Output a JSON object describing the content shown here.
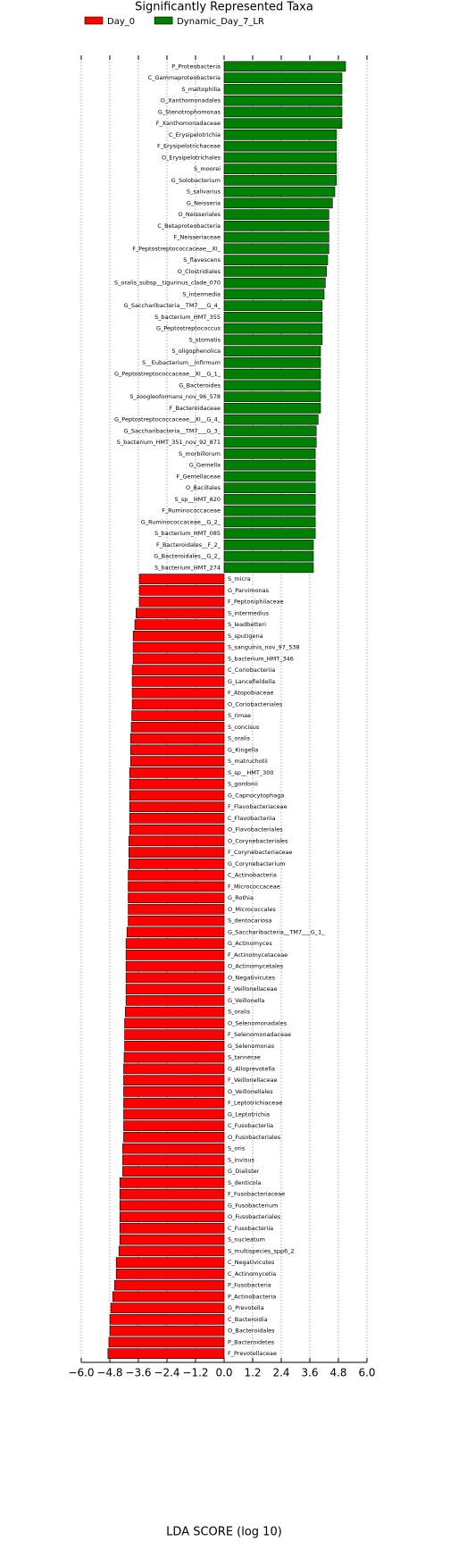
{
  "chart_data": {
    "type": "bar",
    "orientation": "horizontal",
    "title": "Significantly Represented Taxa",
    "xlabel": "LDA SCORE (log 10)",
    "categories": [
      "P_Proteobacteria",
      "C_Gammaproteobacteria",
      "S_maltophilia",
      "O_Xanthomonadales",
      "G_Stenotrophomonas",
      "F_Xanthomonadaceae",
      "C_Erysipelotrichia",
      "F_Erysipelotrichaceae",
      "O_Erysipelotrichales",
      "S_moorei",
      "G_Solobacterium",
      "S_salivarius",
      "G_Neisseria",
      "O_Neisseriales",
      "C_Betaproteobacteria",
      "F_Neisseriaceae",
      "F_Peptostreptococcaceae__XI_",
      "S_flavescens",
      "O_Clostridiales",
      "S_oralis_subsp__tigurinus_clade_070",
      "S_intermedia",
      "G_Saccharibacteria__TM7___G_4_",
      "S_bacterium_HMT_355",
      "G_Peptostreptococcus",
      "S_stomatis",
      "S_oligophenolica",
      "S__Eubacterium__infirmum",
      "G_Peptostreptococcaceae__XI__G_1_",
      "G_Bacteroides",
      "S_zoogleoformans_nov_96_578",
      "F_Bacteroidaceae",
      "G_Peptostreptococcaceae__XI__G_4_",
      "G_Saccharibacteria__TM7___G_3_",
      "S_bacterium_HMT_351_nov_92_871",
      "S_morbillorum",
      "G_Gemella",
      "F_Gemellaceae",
      "O_Bacillales",
      "S_sp__HMT_820",
      "F_Ruminococcaceae",
      "G_Ruminococcaceae__G_2_",
      "S_bacterium_HMT_085",
      "F_Bacteroidales__F_2_",
      "G_Bacteroidales__G_2_",
      "S_bacterium_HMT_274",
      "S_micra",
      "G_Parvimonas",
      "F_Peptoniphilaceae",
      "S_intermedius",
      "S_leadbetteri",
      "S_sputigena",
      "S_sanguinis_nov_97_538",
      "S_bacterium_HMT_346",
      "C_Coriobacteriia",
      "G_Lancefieldella",
      "F_Atopobiaceae",
      "O_Coriobacteriales",
      "S_rimae",
      "S_concisus",
      "S_oralis",
      "G_Kingella",
      "S_matruchotii",
      "S_sp__HMT_300",
      "S_gordonii",
      "G_Capnocytophaga",
      "F_Flavobacteriaceae",
      "C_Flavobacteriia",
      "O_Flavobacteriales",
      "O_Corynebacteriales",
      "F_Corynebacteriaceae",
      "G_Corynebacterium",
      "C_Actinobacteria",
      "F_Micrococcaceae",
      "G_Rothia",
      "O_Micrococcales",
      "S_dentocariosa",
      "G_Saccharibacteria__TM7___G_1_",
      "G_Actinomyces",
      "F_Actinomycetaceae",
      "O_Actinomycetales",
      "O_Negativicutes",
      "F_Veillonellaceae",
      "G_Veillonella",
      "S_oralis",
      "O_Selenomonadales",
      "F_Selenomonadaceae",
      "G_Selenomonas",
      "S_tannerae",
      "G_Alloprevotella",
      "F_Veillonellaceae",
      "O_Veillonellales",
      "F_Leptotrichiaceae",
      "G_Leptotrichia",
      "C_Fusobacteriia",
      "O_Fusobacteriales",
      "S_oris",
      "S_invisus",
      "G_Dialister",
      "S_denticola",
      "F_Fusobacteriaceae",
      "G_Fusobacterium",
      "O_Fusobacteriales",
      "C_Fusobacteriia",
      "S_nucleatum",
      "S_multispecies_spp6_2",
      "C_Negativicutes",
      "C_Actinomycetia",
      "P_Fusobacteria",
      "P_Actinobacteria",
      "G_Prevotella",
      "C_Bacteroidia",
      "O_Bacteroidales",
      "P_Bacteroidetes",
      "F_Prevotellaceae"
    ],
    "series": [
      {
        "name": "Day_0",
        "color": "#ff0000",
        "values": [
          null,
          null,
          null,
          null,
          null,
          null,
          null,
          null,
          null,
          null,
          null,
          null,
          null,
          null,
          null,
          null,
          null,
          null,
          null,
          null,
          null,
          null,
          null,
          null,
          null,
          null,
          null,
          null,
          null,
          null,
          null,
          null,
          null,
          null,
          null,
          null,
          null,
          null,
          null,
          null,
          null,
          null,
          null,
          null,
          null,
          -3.56,
          -3.56,
          -3.56,
          -3.7,
          -3.75,
          -3.82,
          -3.82,
          -3.82,
          -3.86,
          -3.86,
          -3.86,
          -3.86,
          -3.88,
          -3.9,
          -3.93,
          -3.93,
          -3.93,
          -3.97,
          -3.97,
          -3.97,
          -3.97,
          -3.97,
          -3.97,
          -4.0,
          -4.0,
          -4.0,
          -4.03,
          -4.03,
          -4.03,
          -4.03,
          -4.03,
          -4.08,
          -4.12,
          -4.12,
          -4.12,
          -4.12,
          -4.12,
          -4.12,
          -4.15,
          -4.18,
          -4.18,
          -4.18,
          -4.2,
          -4.22,
          -4.22,
          -4.22,
          -4.22,
          -4.22,
          -4.22,
          -4.22,
          -4.26,
          -4.26,
          -4.26,
          -4.38,
          -4.38,
          -4.38,
          -4.38,
          -4.38,
          -4.38,
          -4.42,
          -4.53,
          -4.53,
          -4.6,
          -4.68,
          -4.76,
          -4.8,
          -4.8,
          -4.84,
          -4.88
        ]
      },
      {
        "name": "Dynamic_Day_7_LR",
        "color": "#008000",
        "values": [
          5.1,
          4.95,
          4.95,
          4.95,
          4.95,
          4.95,
          4.72,
          4.72,
          4.72,
          4.72,
          4.72,
          4.65,
          4.55,
          4.4,
          4.4,
          4.4,
          4.4,
          4.35,
          4.3,
          4.25,
          4.2,
          4.12,
          4.12,
          4.12,
          4.12,
          4.05,
          4.05,
          4.05,
          4.05,
          4.05,
          4.05,
          3.95,
          3.87,
          3.87,
          3.83,
          3.83,
          3.83,
          3.83,
          3.83,
          3.83,
          3.83,
          3.83,
          3.75,
          3.75,
          3.75,
          null,
          null,
          null,
          null,
          null,
          null,
          null,
          null,
          null,
          null,
          null,
          null,
          null,
          null,
          null,
          null,
          null,
          null,
          null,
          null,
          null,
          null,
          null,
          null,
          null,
          null,
          null,
          null,
          null,
          null,
          null,
          null,
          null,
          null,
          null,
          null,
          null,
          null,
          null,
          null,
          null,
          null,
          null,
          null,
          null,
          null,
          null,
          null,
          null,
          null,
          null,
          null,
          null,
          null,
          null,
          null,
          null,
          null,
          null,
          null,
          null,
          null,
          null,
          null,
          null,
          null,
          null,
          null,
          null
        ]
      }
    ],
    "xlim": [
      -6,
      6
    ],
    "xticks": [
      {
        "value": -6,
        "label": "−6.0"
      },
      {
        "value": -4.8,
        "label": "−4.8"
      },
      {
        "value": -3.6,
        "label": "−3.6"
      },
      {
        "value": -2.4,
        "label": "−2.4"
      },
      {
        "value": -1.2,
        "label": "−1.2"
      },
      {
        "value": 0,
        "label": "0.0"
      },
      1.2,
      2.4,
      3.6,
      4.8,
      {
        "value": 6,
        "label": "6.0"
      }
    ],
    "grid": true,
    "legend": "top"
  }
}
